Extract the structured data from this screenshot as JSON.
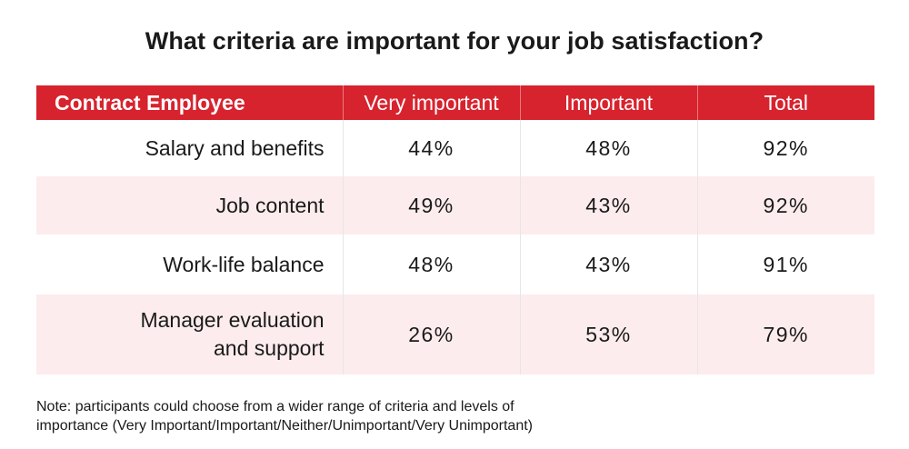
{
  "chart_data": {
    "type": "table",
    "title": "What criteria are important for your job satisfaction?",
    "columns": [
      "Contract Employee",
      "Very important",
      "Important",
      "Total"
    ],
    "rows": [
      {
        "label": "Salary and benefits",
        "very_important": "44%",
        "important": "48%",
        "total": "92%"
      },
      {
        "label": "Job content",
        "very_important": "49%",
        "important": "43%",
        "total": "92%"
      },
      {
        "label": "Work-life balance",
        "very_important": "48%",
        "important": "43%",
        "total": "91%"
      },
      {
        "label": "Manager evaluation\nand support",
        "very_important": "26%",
        "important": "53%",
        "total": "79%"
      }
    ],
    "colors": {
      "header": "#d7232e",
      "stripe": "#fdeced"
    }
  },
  "note": {
    "line1": "Note: participants could choose from a wider range of criteria and levels of",
    "line2": "importance  (Very Important/Important/Neither/Unimportant/Very Unimportant)"
  }
}
